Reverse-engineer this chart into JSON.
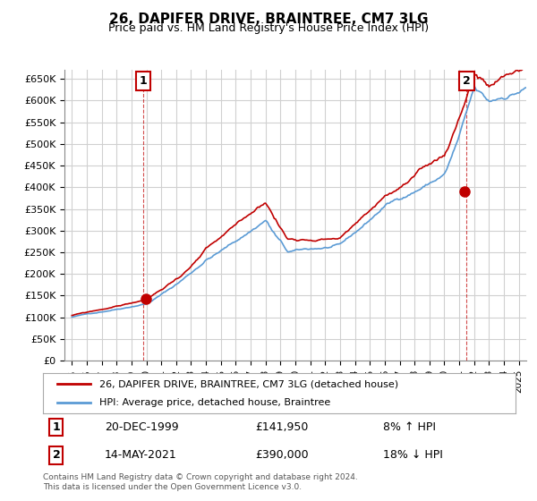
{
  "title": "26, DAPIFER DRIVE, BRAINTREE, CM7 3LG",
  "subtitle": "Price paid vs. HM Land Registry's House Price Index (HPI)",
  "xlabel": "",
  "ylabel": "",
  "ylim": [
    0,
    670000
  ],
  "yticks": [
    0,
    50000,
    100000,
    150000,
    200000,
    250000,
    300000,
    350000,
    400000,
    450000,
    500000,
    550000,
    600000,
    650000
  ],
  "ytick_labels": [
    "£0",
    "£50K",
    "£100K",
    "£150K",
    "£200K",
    "£250K",
    "£300K",
    "£350K",
    "£400K",
    "£450K",
    "£500K",
    "£550K",
    "£600K",
    "£650K"
  ],
  "hpi_color": "#5b9bd5",
  "property_color": "#c00000",
  "grid_color": "#d0d0d0",
  "background_color": "#ffffff",
  "transaction1_date": "20-DEC-1999",
  "transaction1_price": 141950,
  "transaction1_label": "1",
  "transaction1_hpi": "8% ↑ HPI",
  "transaction2_date": "14-MAY-2021",
  "transaction2_price": 390000,
  "transaction2_label": "2",
  "transaction2_hpi": "18% ↓ HPI",
  "legend_property": "26, DAPIFER DRIVE, BRAINTREE, CM7 3LG (detached house)",
  "legend_hpi": "HPI: Average price, detached house, Braintree",
  "footnote": "Contains HM Land Registry data © Crown copyright and database right 2024.\nThis data is licensed under the Open Government Licence v3.0.",
  "xlim_start": 1994.5,
  "xlim_end": 2025.5
}
